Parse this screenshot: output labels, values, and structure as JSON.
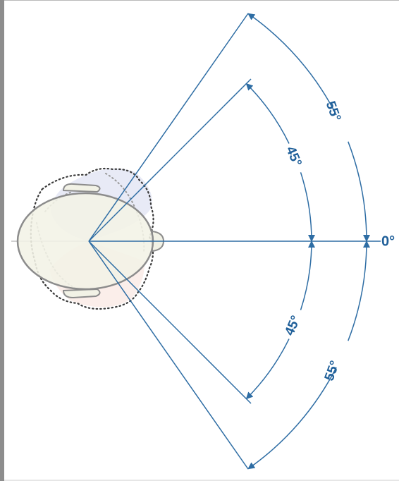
{
  "diagram": {
    "labels": {
      "zero": "0°",
      "inner_upper": "45°",
      "inner_lower": "45°",
      "outer_upper": "55°",
      "outer_lower": "55°"
    },
    "colors": {
      "line": "#2e6da4",
      "text": "#1f5f99",
      "head_fill": "#f2f2e6",
      "head_stroke": "#8c8c8c",
      "rotated_upper_tint": "#e6e8f5",
      "rotated_lower_tint": "#fbece8",
      "dotted_outline": "#3a3a3a"
    }
  }
}
